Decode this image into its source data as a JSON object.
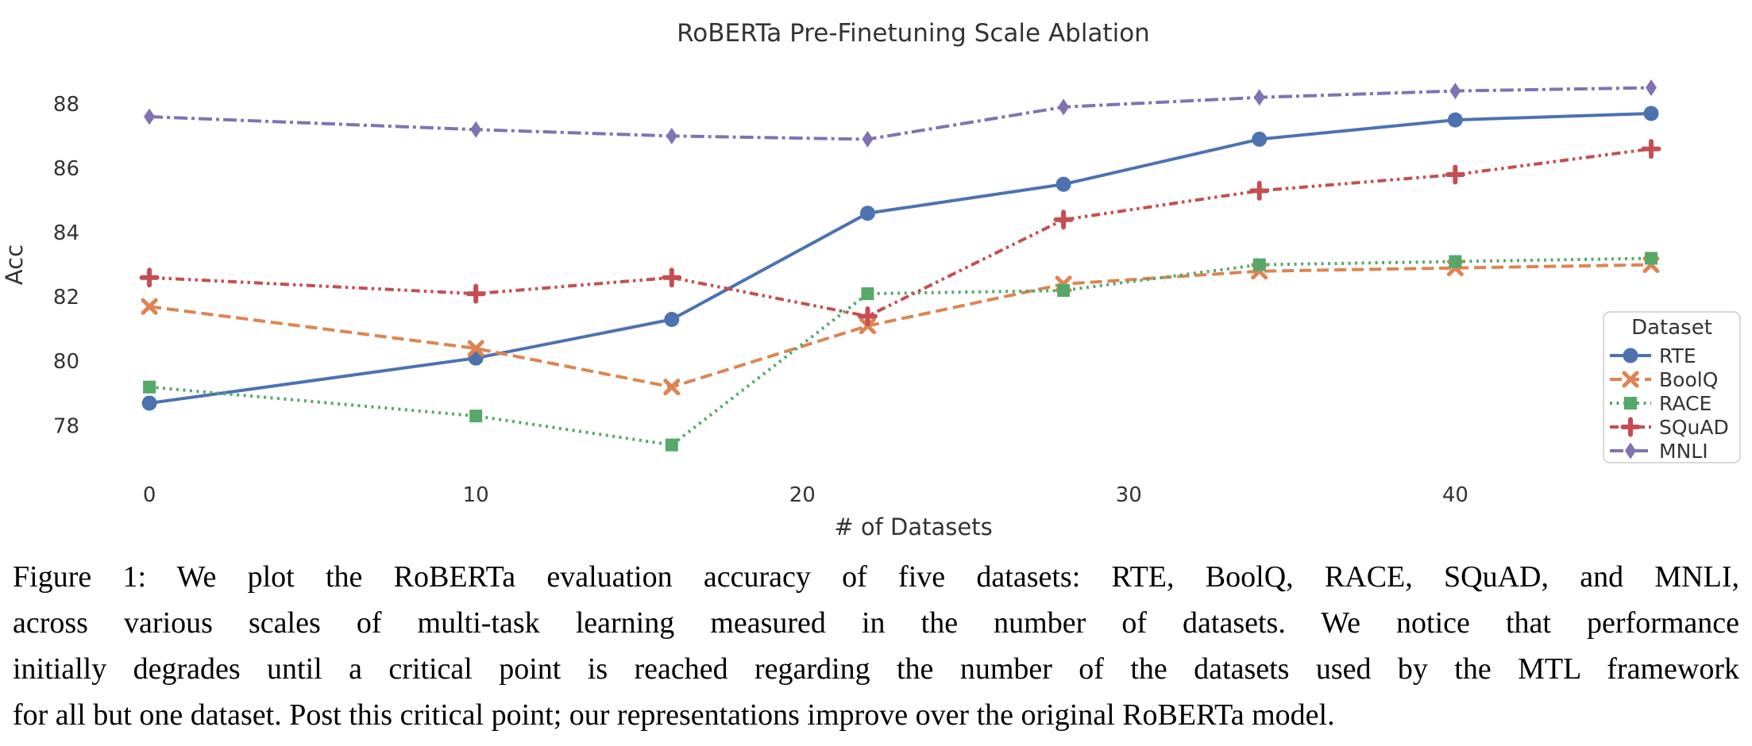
{
  "chart_data": {
    "type": "line",
    "title": "RoBERTa Pre-Finetuning Scale Ablation",
    "xlabel": "# of Datasets",
    "ylabel": "Acc",
    "x": [
      0,
      10,
      16,
      22,
      28,
      34,
      40,
      46
    ],
    "series": [
      {
        "name": "RTE",
        "color": "#4C72B0",
        "line_style": "solid",
        "marker": "circle",
        "values": [
          78.7,
          80.1,
          81.3,
          84.6,
          85.5,
          86.9,
          87.5,
          87.7
        ]
      },
      {
        "name": "BoolQ",
        "color": "#DD8452",
        "line_style": "dashed",
        "marker": "x",
        "values": [
          81.7,
          80.4,
          79.2,
          81.1,
          82.4,
          82.8,
          82.9,
          83.0
        ]
      },
      {
        "name": "RACE",
        "color": "#55A868",
        "line_style": "dotted",
        "marker": "square",
        "values": [
          79.2,
          78.3,
          77.4,
          82.1,
          82.2,
          83.0,
          83.1,
          83.2
        ]
      },
      {
        "name": "SQuAD",
        "color": "#C44E52",
        "line_style": "dash-dot-dot",
        "marker": "plus",
        "values": [
          82.6,
          82.1,
          82.6,
          81.4,
          84.4,
          85.3,
          85.8,
          86.6
        ]
      },
      {
        "name": "MNLI",
        "color": "#8172B3",
        "line_style": "dash-dot",
        "marker": "diamond",
        "values": [
          87.6,
          87.2,
          87.0,
          86.9,
          87.9,
          88.2,
          88.4,
          88.5
        ]
      }
    ],
    "x_ticks": [
      0,
      10,
      20,
      30,
      40
    ],
    "y_ticks": [
      78,
      80,
      82,
      84,
      86,
      88
    ],
    "xlim": [
      -1.9,
      48.7
    ],
    "ylim": [
      76.8,
      89.5
    ],
    "grid": false,
    "legend": {
      "title": "Dataset",
      "position": "right"
    },
    "text_color": "#333333",
    "legend_border_color": "#cccccc"
  },
  "figure": {
    "caption": {
      "lines": [
        "Figure 1: We plot the RoBERTa evaluation accuracy of five datasets: RTE, BoolQ, RACE, SQuAD, and MNLI,",
        "across various scales of multi-task learning measured in the number of datasets. We notice that performance",
        "initially degrades until a critical point is reached regarding the number of the datasets used by the MTL framework",
        "for all but one dataset. Post this critical point; our representations improve over the original RoBERTa model."
      ]
    }
  }
}
